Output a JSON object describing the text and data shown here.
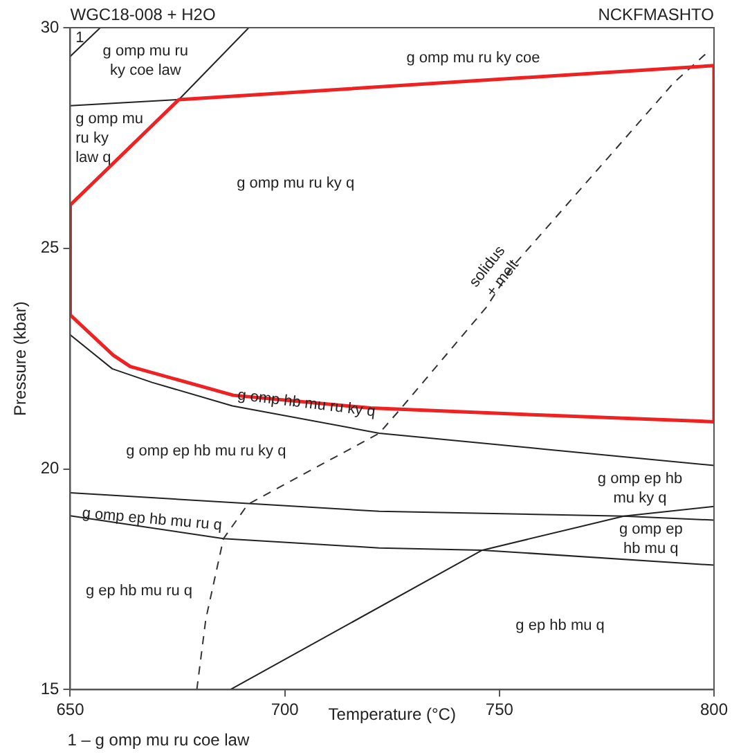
{
  "chart_data": {
    "type": "line",
    "title": "WGC18-008 + H2O",
    "subtitle": "NCKFMASHTO",
    "xlabel": "Temperature (°C)",
    "ylabel": "Pressure (kbar)",
    "xlim": [
      650,
      800
    ],
    "xticks": [
      650,
      700,
      750,
      800
    ],
    "ylim": [
      15,
      30
    ],
    "yticks": [
      15,
      20,
      25,
      30
    ],
    "legend": false,
    "marker": "none",
    "series": [
      {
        "type": "line",
        "color": "#222222",
        "x": [
          650,
          657
        ],
        "values": [
          29.35,
          30
        ]
      },
      {
        "type": "line",
        "color": "#222222",
        "x": [
          650,
          675.3
        ],
        "values": [
          28.23,
          28.37
        ]
      },
      {
        "type": "line",
        "color": "#222222",
        "x": [
          675.3,
          691.6
        ],
        "values": [
          28.37,
          30
        ]
      },
      {
        "type": "line",
        "color": "#222222",
        "x": [
          650,
          659.8,
          669.1,
          687.8,
          722,
          760.4,
          800
        ],
        "values": [
          23.04,
          22.27,
          21.96,
          21.43,
          20.81,
          20.45,
          20.08
        ]
      },
      {
        "type": "line",
        "color": "#222222",
        "x": [
          650,
          722,
          779,
          800
        ],
        "values": [
          19.46,
          19.04,
          18.93,
          19.15
        ]
      },
      {
        "type": "line",
        "color": "#222222",
        "x": [
          687.3,
          746,
          779,
          800
        ],
        "values": [
          15,
          18.16,
          18.93,
          18.84
        ]
      },
      {
        "type": "line",
        "color": "#222222",
        "x": [
          650,
          685.7,
          722,
          746,
          800
        ],
        "values": [
          18.94,
          18.42,
          18.21,
          18.16,
          17.82
        ]
      },
      {
        "type": "line",
        "color": "#333333",
        "line_style": "dashed",
        "x": [
          679.5,
          681.6,
          685.7,
          691.4,
          722,
          726.7,
          747,
          753.2,
          790.6,
          798.9
        ],
        "values": [
          15,
          16.6,
          18.42,
          19.2,
          20.81,
          21.33,
          23.67,
          24.6,
          28.75,
          29.48
        ]
      },
      {
        "type": "line",
        "color": "#ee2222",
        "x": [
          650,
          675.3,
          800,
          800
        ],
        "values": [
          25.98,
          28.37,
          29.14,
          21.07
        ]
      },
      {
        "type": "line",
        "color": "#ee2222",
        "x": [
          650,
          650,
          660,
          664,
          688,
          720,
          760,
          800
        ],
        "values": [
          25.98,
          23.49,
          22.58,
          22.32,
          21.67,
          21.38,
          21.22,
          21.07
        ]
      }
    ],
    "annotations": [
      "1",
      "g omp mu ru\nky coe law",
      "g omp mu ru ky coe",
      "g omp mu\nru ky\nlaw q",
      "g omp mu ru ky q",
      "solidus\n+ melt",
      "g omp hb mu ru ky q",
      "g omp ep hb mu ru ky q",
      "g omp ep hb\nmu ky q",
      "g omp ep hb mu ru q",
      "g omp ep\nhb mu q",
      "g ep hb mu ru q",
      "g ep hb mu q",
      "1 – g omp mu ru coe law"
    ]
  }
}
